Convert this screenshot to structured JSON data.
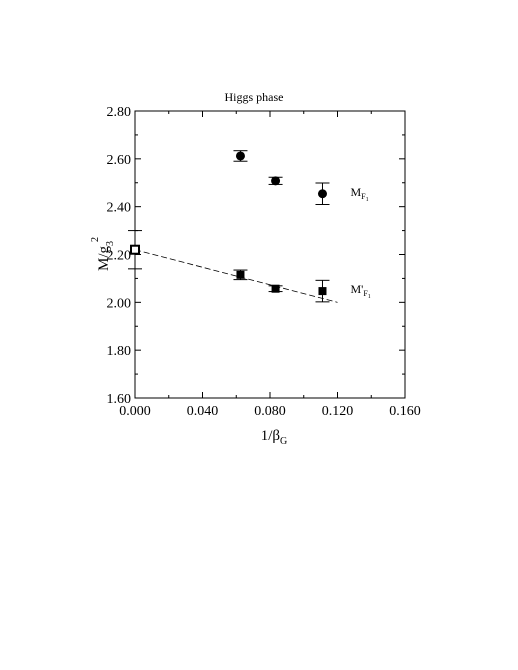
{
  "chart_data": {
    "type": "scatter",
    "title": "Higgs phase",
    "xlabel": {
      "main": "1/β",
      "sub": "G"
    },
    "ylabel": {
      "main": "M/g",
      "sub": "3",
      "sup": "2"
    },
    "xlim": [
      0.0,
      0.16
    ],
    "ylim": [
      1.6,
      2.8
    ],
    "xticks": [
      "0.000",
      "0.040",
      "0.080",
      "0.120",
      "0.160"
    ],
    "xtick_values": [
      0.0,
      0.04,
      0.08,
      0.12,
      0.16
    ],
    "yticks": [
      "1.60",
      "1.80",
      "2.00",
      "2.20",
      "2.40",
      "2.60",
      "2.80"
    ],
    "ytick_values": [
      1.6,
      1.8,
      2.0,
      2.2,
      2.4,
      2.6,
      2.8
    ],
    "grid": false,
    "series": [
      {
        "name": "M_F1",
        "label": {
          "main": "M",
          "sub": "F",
          "subsub": "1"
        },
        "marker": "circle-filled",
        "points": [
          {
            "x": 0.0625,
            "y": 2.612,
            "err": 0.022
          },
          {
            "x": 0.0833,
            "y": 2.508,
            "err": 0.015
          },
          {
            "x": 0.1111,
            "y": 2.454,
            "err": 0.045
          }
        ]
      },
      {
        "name": "M'_F1",
        "label": {
          "main": "M'",
          "sub": "F",
          "subsub": "1"
        },
        "marker": "square-filled",
        "points": [
          {
            "x": 0.0625,
            "y": 2.115,
            "err": 0.02
          },
          {
            "x": 0.0833,
            "y": 2.057,
            "err": 0.012
          },
          {
            "x": 0.1111,
            "y": 2.047,
            "err": 0.045
          }
        ]
      },
      {
        "name": "extrapolation",
        "marker": "square-open",
        "points": [
          {
            "x": 0.0,
            "y": 2.22,
            "err": 0.08
          }
        ]
      }
    ],
    "fit_line": {
      "style": "dashed",
      "x": [
        0.0,
        0.12
      ],
      "y": [
        2.22,
        2.0
      ]
    }
  }
}
